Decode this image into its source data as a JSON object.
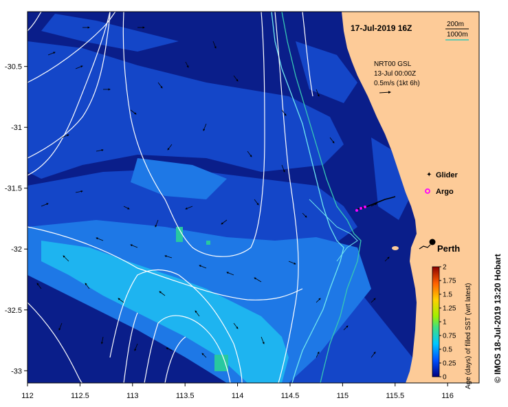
{
  "map": {
    "date_label": "17-Jul-2019 16Z",
    "depth_legend": {
      "shallow": "200m",
      "deep": "1000m"
    },
    "current_legend": {
      "line1": "NRT00 GSL",
      "line2": "13-Jul 00:00Z",
      "line3": "0.5m/s (1kt 6h)"
    },
    "symbol_legend": {
      "glider": "Glider",
      "argo": "Argo"
    },
    "city_label": "Perth",
    "credit": "© IMOS 18-Jul-2019 13:20 Hobart",
    "lon_ticks": [
      "112",
      "112.5",
      "113",
      "113.5",
      "114",
      "114.5",
      "115",
      "115.5",
      "116"
    ],
    "lat_ticks": [
      "-30.5",
      "-31",
      "-31.5",
      "-32",
      "-32.5",
      "-33"
    ],
    "extent": {
      "lon": [
        112,
        116.3
      ],
      "lat": [
        -33.1,
        -30.05
      ]
    },
    "colors": {
      "land": "#FDCB98",
      "ocean_deep": "#0A1E8A",
      "ocean_mid": "#1446C8",
      "ocean_light": "#1E78E6",
      "ocean_cyan": "#1EB4F0",
      "isobath_200": "#6FE8F0",
      "glider": "#FF00FF"
    }
  },
  "colorbar": {
    "title": "Age (days) of filled SST (wrt latest)",
    "ticks": [
      "0",
      "0.25",
      "0.5",
      "0.75",
      "1",
      "1.25",
      "1.5",
      "1.75",
      "2"
    ],
    "range": [
      0,
      2
    ]
  }
}
